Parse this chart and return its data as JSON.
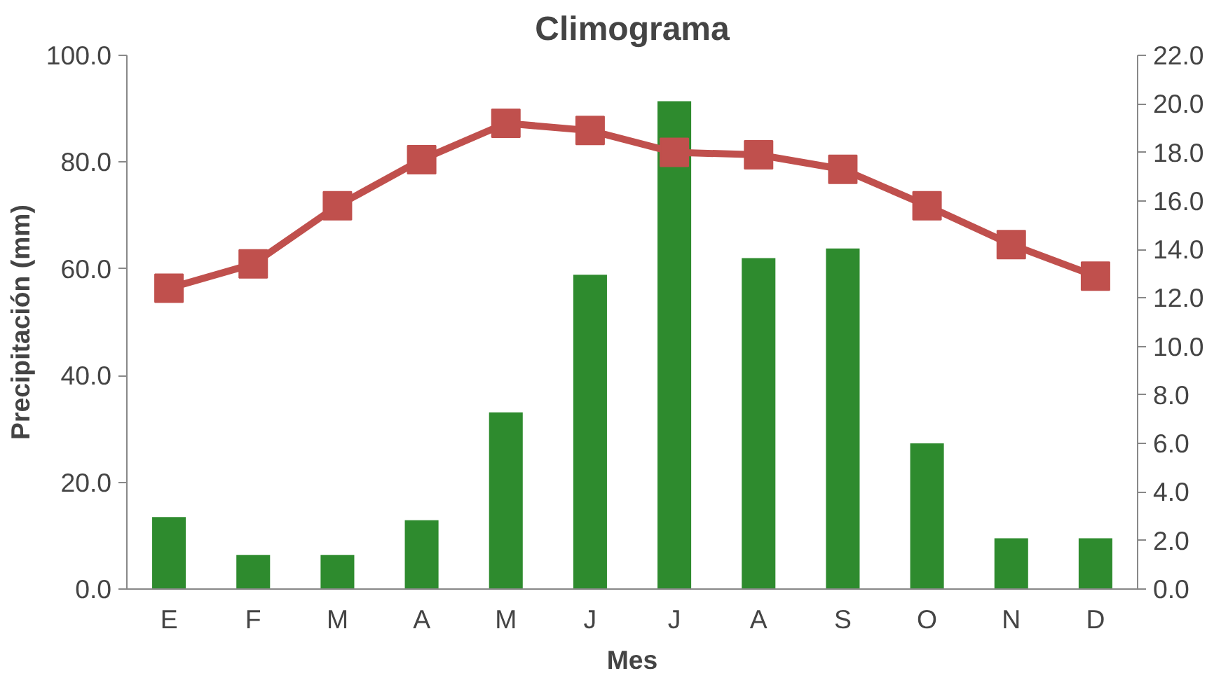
{
  "chart_data": {
    "type": "bar",
    "title": "Climograma",
    "xlabel": "Mes",
    "ylabel": "Precipitación (mm)",
    "categories": [
      "E",
      "F",
      "M",
      "A",
      "M",
      "J",
      "J",
      "A",
      "S",
      "O",
      "N",
      "D"
    ],
    "series": [
      {
        "color": "#2e8b2e",
        "values": [
          13.5,
          6.4,
          6.4,
          12.9,
          33.1,
          58.9,
          91.4,
          62.0,
          63.8,
          27.3,
          9.5,
          9.5
        ]
      },
      {
        "type": "line",
        "axis": "y2",
        "color": "#c0504d",
        "marker": "square",
        "line_style": "solid",
        "values": [
          12.4,
          13.4,
          15.8,
          17.7,
          19.2,
          18.9,
          18.0,
          17.9,
          17.3,
          15.8,
          14.2,
          12.9
        ]
      }
    ],
    "ylim": [
      0,
      100
    ],
    "yticks": [
      {
        "value": 0,
        "label": "0.0"
      },
      {
        "value": 20,
        "label": "20.0"
      },
      {
        "value": 40,
        "label": "40.0"
      },
      {
        "value": 60,
        "label": "60.0"
      },
      {
        "value": 80,
        "label": "80.0"
      },
      {
        "value": 100,
        "label": "100.0"
      }
    ],
    "y2lim": [
      0,
      22
    ],
    "y2ticks": [
      {
        "value": 0,
        "label": "0.0"
      },
      {
        "value": 2,
        "label": "2.0"
      },
      {
        "value": 4,
        "label": "4.0"
      },
      {
        "value": 6,
        "label": "6.0"
      },
      {
        "value": 8,
        "label": "8.0"
      },
      {
        "value": 10,
        "label": "10.0"
      },
      {
        "value": 12,
        "label": "12.0"
      },
      {
        "value": 14,
        "label": "14.0"
      },
      {
        "value": 16,
        "label": "16.0"
      },
      {
        "value": 18,
        "label": "18.0"
      },
      {
        "value": 20,
        "label": "20.0"
      },
      {
        "value": 22,
        "label": "22.0"
      }
    ],
    "grid": false
  }
}
